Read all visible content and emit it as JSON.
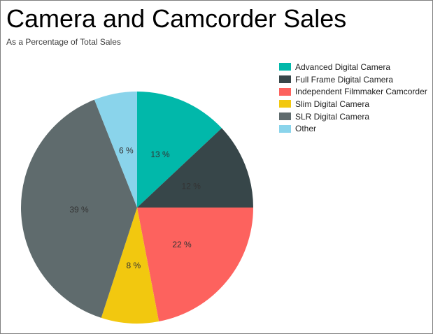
{
  "chart_data": {
    "type": "pie",
    "title": "Camera and Camcorder Sales",
    "subtitle": "As a Percentage of Total Sales",
    "value_unit": "%",
    "direction": "clockwise",
    "start_angle_deg": 0,
    "legend_position": "right-top",
    "label_color": "#333333",
    "background": "#FFFFFF",
    "border_color": "#808080",
    "slices": [
      {
        "label": "Advanced Digital Camera",
        "value": 13,
        "display": "13 %",
        "color": "#01B8AA"
      },
      {
        "label": "Full Frame Digital Camera",
        "value": 12,
        "display": "12 %",
        "color": "#374649"
      },
      {
        "label": "Independent Filmmaker Camcorder",
        "value": 22,
        "display": "22 %",
        "color": "#FD625E"
      },
      {
        "label": "Slim Digital Camera",
        "value": 8,
        "display": "8 %",
        "color": "#F2C80F"
      },
      {
        "label": "SLR Digital Camera",
        "value": 39,
        "display": "39 %",
        "color": "#5F6B6D"
      },
      {
        "label": "Other",
        "value": 6,
        "display": "6 %",
        "color": "#8AD4EB"
      }
    ]
  }
}
